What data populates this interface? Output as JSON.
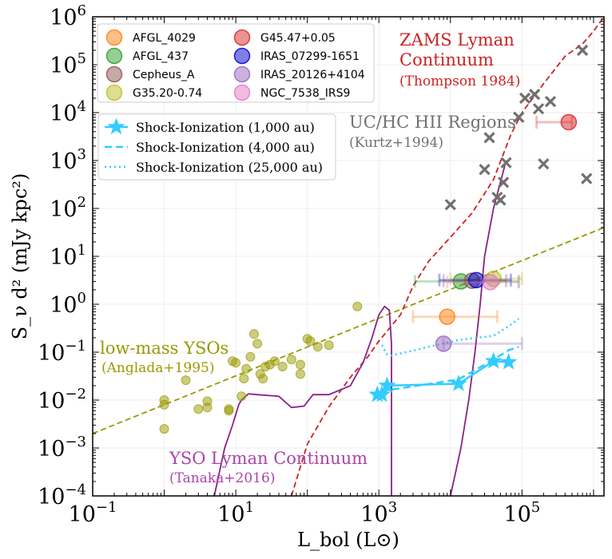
{
  "chart_data": {
    "type": "scatter",
    "title": "",
    "xlabel": "L_bol (L⊙)",
    "ylabel": "S_ν d² (mJy kpc²)",
    "xscale": "log",
    "yscale": "log",
    "xlim": [
      0.1,
      1400000
    ],
    "ylim": [
      0.0001,
      1000000
    ],
    "x_ticks": [
      {
        "base": "10",
        "exp": "−1",
        "v": 0.1
      },
      {
        "base": "10",
        "exp": "1",
        "v": 10
      },
      {
        "base": "10",
        "exp": "3",
        "v": 1000
      },
      {
        "base": "10",
        "exp": "5",
        "v": 100000
      }
    ],
    "y_ticks": [
      {
        "base": "10",
        "exp": "−4",
        "v": 0.0001
      },
      {
        "base": "10",
        "exp": "−3",
        "v": 0.001
      },
      {
        "base": "10",
        "exp": "−2",
        "v": 0.01
      },
      {
        "base": "10",
        "exp": "−1",
        "v": 0.1
      },
      {
        "base": "10",
        "exp": "0",
        "v": 1
      },
      {
        "base": "10",
        "exp": "1",
        "v": 10
      },
      {
        "base": "10",
        "exp": "2",
        "v": 100
      },
      {
        "base": "10",
        "exp": "3",
        "v": 1000
      },
      {
        "base": "10",
        "exp": "4",
        "v": 10000
      },
      {
        "base": "10",
        "exp": "5",
        "v": 100000
      },
      {
        "base": "10",
        "exp": "6",
        "v": 1000000
      }
    ],
    "grid": true,
    "legend_sources_position": "top-left",
    "legend_models_position": "upper-left",
    "sources": [
      {
        "name": "AFGL_4029",
        "color": "#ff7f0e",
        "x": 9000,
        "y": 0.55,
        "xerr": [
          3000,
          45000
        ]
      },
      {
        "name": "AFGL_437",
        "color": "#2ca02c",
        "x": 14000,
        "y": 3.0,
        "xerr": [
          3200,
          90000
        ]
      },
      {
        "name": "Cepheus_A",
        "color": "#8c564b",
        "x": 20000,
        "y": 3.1,
        "xerr": [
          8000,
          60000
        ]
      },
      {
        "name": "G35.20-0.74",
        "color": "#bcbd22",
        "x": 40000,
        "y": 3.4,
        "xerr": [
          10000,
          100000
        ]
      },
      {
        "name": "G45.47+0.05",
        "color": "#d62728",
        "x": 450000,
        "y": 6300,
        "xerr": [
          160000,
          500000
        ]
      },
      {
        "name": "IRAS_07299-1651",
        "color": "#0000cd",
        "x": 23000,
        "y": 3.2,
        "xerr": [
          7000,
          70000
        ]
      },
      {
        "name": "IRAS_20126+4104",
        "color": "#9467bd",
        "x": 8000,
        "y": 0.15,
        "xerr": [
          8000,
          100000
        ]
      },
      {
        "name": "NGC_7538_IRS9",
        "color": "#e377c2",
        "x": 36000,
        "y": 2.9,
        "xerr": [
          9000,
          90000
        ]
      }
    ],
    "models": [
      {
        "name": "Shock-Ionization (1,000 au)",
        "style": "solid",
        "color": "#33ccff",
        "marker": "star",
        "x": [
          950,
          1100,
          1300,
          13000,
          40000,
          65000
        ],
        "y": [
          0.013,
          0.013,
          0.02,
          0.022,
          0.065,
          0.062
        ]
      },
      {
        "name": "Shock-Ionization (4,000 au)",
        "style": "dashed",
        "color": "#33ccff",
        "x": [
          1100,
          1300,
          13000,
          40000,
          65000,
          90000
        ],
        "y": [
          0.014,
          0.016,
          0.027,
          0.07,
          0.11,
          0.13
        ]
      },
      {
        "name": "Shock-Ionization (25,000 au)",
        "style": "dotted",
        "color": "#33ccff",
        "x": [
          1100,
          1200,
          1300,
          1500,
          13000,
          40000,
          65000,
          90000
        ],
        "y": [
          0.14,
          0.11,
          0.09,
          0.085,
          0.18,
          0.22,
          0.35,
          0.5
        ]
      }
    ],
    "uchii": {
      "color": "#707070",
      "x": [
        10000,
        30000,
        35000,
        45000,
        50000,
        55000,
        60000,
        90000,
        110000,
        150000,
        170000,
        200000,
        250000,
        700000,
        800000
      ],
      "y": [
        120,
        650,
        3000,
        170,
        150,
        350,
        900,
        8000,
        20000,
        24000,
        12000,
        850,
        17000,
        200000,
        420
      ]
    },
    "low_mass": {
      "color": "#999900",
      "x": [
        1,
        1,
        1,
        2,
        3,
        4,
        4,
        8,
        8,
        9,
        10,
        12,
        13,
        14,
        16,
        18,
        20,
        22,
        24,
        26,
        30,
        35,
        45,
        60,
        80,
        80,
        100,
        110,
        140,
        200,
        500
      ],
      "y": [
        0.01,
        0.008,
        0.0025,
        0.026,
        0.0065,
        0.007,
        0.0095,
        0.006,
        0.0065,
        0.065,
        0.06,
        0.012,
        0.028,
        0.045,
        0.08,
        0.24,
        0.15,
        0.035,
        0.028,
        0.05,
        0.055,
        0.065,
        0.05,
        0.07,
        0.035,
        0.055,
        0.19,
        0.17,
        0.13,
        0.14,
        0.9
      ]
    },
    "lines": [
      {
        "name": "low-mass YSOs",
        "source": "Anglada+1995",
        "style": "dashed",
        "color": "#999900",
        "x": [
          0.1,
          1400000
        ],
        "y": [
          0.002,
          40
        ]
      },
      {
        "name": "ZAMS Lyman Continuum",
        "source": "Thompson 1984",
        "style": "dashed",
        "color": "#cc2222",
        "x": [
          60,
          100,
          200,
          400,
          700,
          1000,
          2000,
          3000,
          5000,
          10000,
          20000,
          40000,
          70000,
          100000,
          200000,
          400000,
          700000,
          1000000,
          1400000
        ],
        "y": [
          0.0001,
          0.0012,
          0.0072,
          0.03,
          0.08,
          0.17,
          0.6,
          2.4,
          8,
          25,
          80,
          400,
          3500,
          10000,
          40000,
          150000,
          270000,
          500000,
          1000000
        ]
      },
      {
        "name": "YSO Lyman Continuum",
        "source": "Tanaka+2016",
        "style": "solid",
        "color": "#882288",
        "x": [
          5,
          7,
          9,
          10,
          11,
          12,
          15,
          20,
          40,
          60,
          90,
          120,
          200,
          400,
          600,
          800,
          1000,
          1200,
          1400,
          1500,
          1500
        ],
        "y": [
          0.0001,
          0.001,
          0.003,
          0.005,
          0.008,
          0.01,
          0.0135,
          0.013,
          0.012,
          0.007,
          0.0075,
          0.013,
          0.013,
          0.02,
          0.06,
          0.2,
          0.6,
          0.9,
          0.75,
          0.15,
          0.0001
        ]
      },
      {
        "name": "YSO Lyman Continuum upper",
        "source": "Tanaka+2016",
        "style": "solid",
        "color": "#882288",
        "x": [
          10000,
          14000,
          18000,
          22000,
          26000,
          30000,
          40000,
          60000
        ],
        "y": [
          0.0001,
          0.001,
          0.01,
          0.1,
          1,
          10,
          100,
          1000
        ]
      }
    ],
    "annotations": [
      {
        "text": "ZAMS Lyman",
        "color": "#cc2222",
        "size": "main"
      },
      {
        "text": "Continuum",
        "color": "#cc2222",
        "size": "main"
      },
      {
        "text": "(Thompson 1984)",
        "color": "#cc2222",
        "size": "sub"
      },
      {
        "text": "UC/HC HII Regions",
        "color": "#707070",
        "size": "main"
      },
      {
        "text": "(Kurtz+1994)",
        "color": "#707070",
        "size": "sub"
      },
      {
        "text": "low-mass YSOs",
        "color": "#999900",
        "size": "main"
      },
      {
        "text": "(Anglada+1995)",
        "color": "#999900",
        "size": "sub"
      },
      {
        "text": "YSO Lyman Continuum",
        "color": "#aa44aa",
        "size": "main"
      },
      {
        "text": "(Tanaka+2016)",
        "color": "#aa44aa",
        "size": "sub"
      }
    ]
  }
}
